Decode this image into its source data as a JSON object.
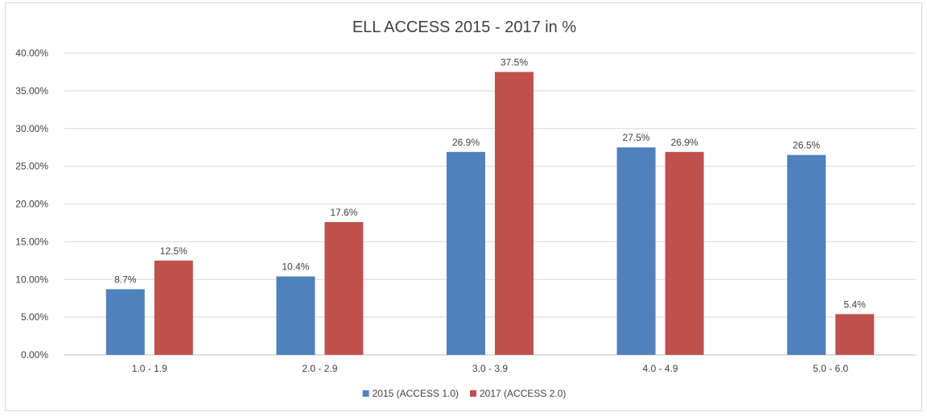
{
  "chart_data": {
    "type": "bar",
    "title": "ELL ACCESS 2015 - 2017 in %",
    "xlabel": "",
    "ylabel": "",
    "categories": [
      "1.0 - 1.9",
      "2.0 - 2.9",
      "3.0 - 3.9",
      "4.0 - 4.9",
      "5.0 - 6.0"
    ],
    "series": [
      {
        "name": "2015 (ACCESS 1.0)",
        "color": "#4f81bd",
        "values": [
          8.7,
          10.4,
          26.9,
          27.5,
          26.5
        ],
        "labels": [
          "8.7%",
          "10.4%",
          "26.9%",
          "27.5%",
          "26.5%"
        ]
      },
      {
        "name": "2017 (ACCESS 2.0)",
        "color": "#c0504d",
        "values": [
          12.5,
          17.6,
          37.5,
          26.9,
          5.4
        ],
        "labels": [
          "12.5%",
          "17.6%",
          "37.5%",
          "26.9%",
          "5.4%"
        ]
      }
    ],
    "ylim": [
      0,
      40
    ],
    "yticks": [
      0,
      5,
      10,
      15,
      20,
      25,
      30,
      35,
      40
    ],
    "ytick_labels": [
      "0.00%",
      "5.00%",
      "10.00%",
      "15.00%",
      "20.00%",
      "25.00%",
      "30.00%",
      "35.00%",
      "40.00%"
    ],
    "grid": true,
    "legend_position": "bottom"
  }
}
